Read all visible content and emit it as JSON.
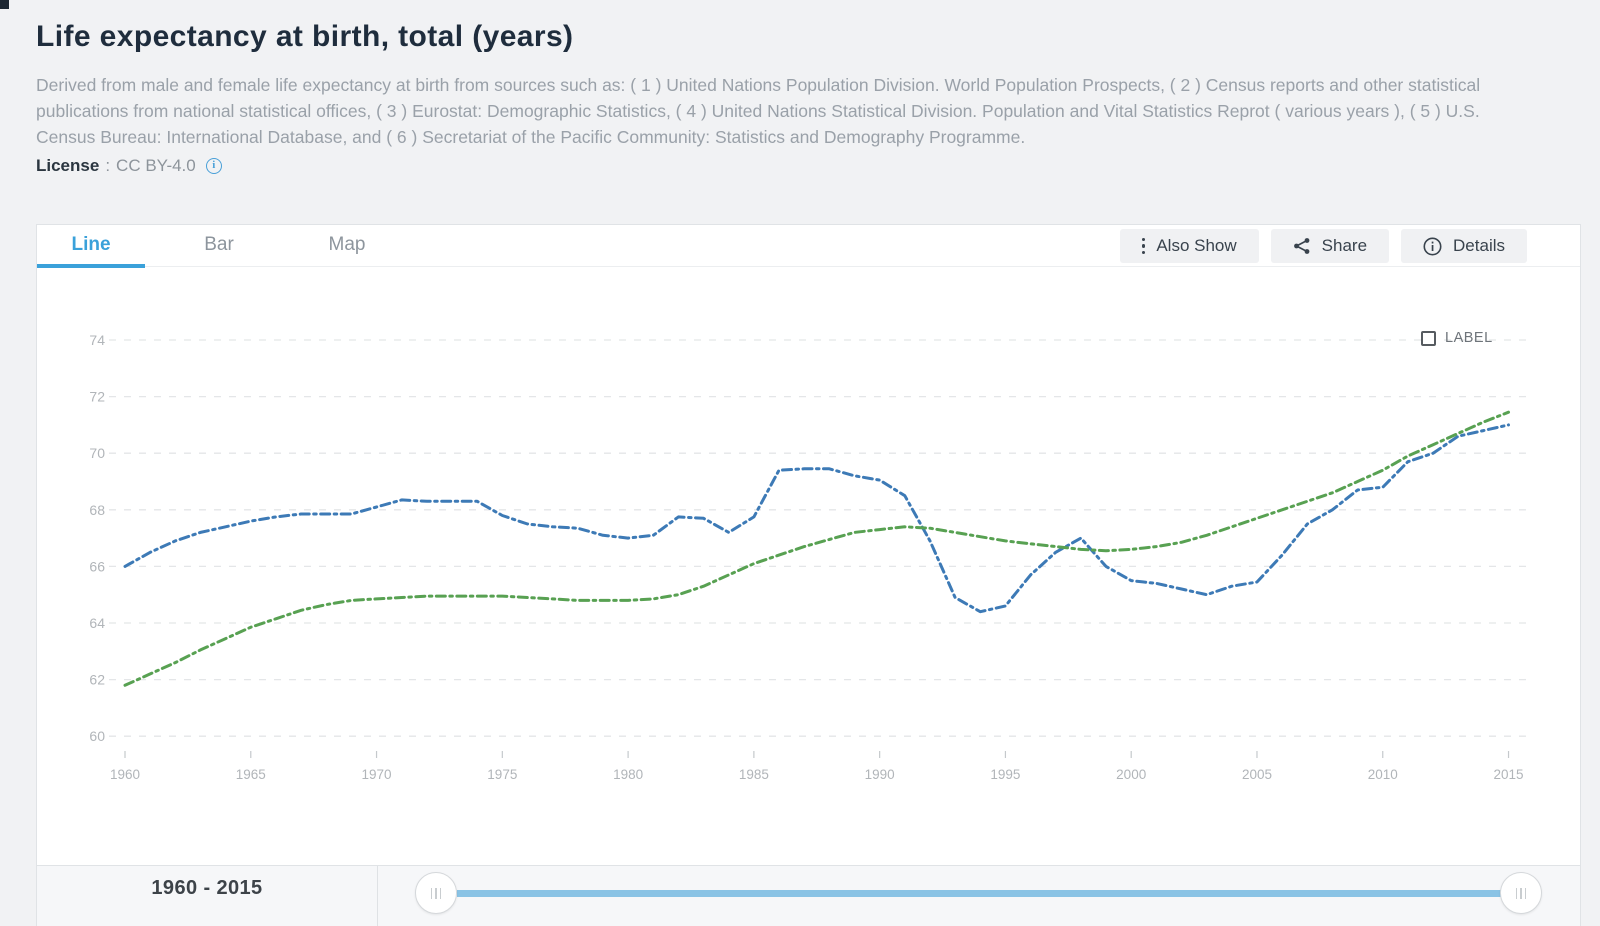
{
  "page": {
    "title": "Life expectancy at birth, total (years)",
    "description": "Derived from male and female life expectancy at birth from sources such as: ( 1 ) United Nations Population Division. World Population Prospects, ( 2 ) Census reports and other statistical publications from national statistical offices, ( 3 ) Eurostat: Demographic Statistics, ( 4 ) United Nations Statistical Division. Population and Vital Statistics Reprot ( various years ), ( 5 ) U.S. Census Bureau: International Database, and ( 6 ) Secretariat of the Pacific Community: Statistics and Demography Programme.",
    "license_label": "License",
    "license_separator": ":",
    "license_value": "CC BY-4.0"
  },
  "tabs": {
    "items": [
      {
        "label": "Line",
        "active": true
      },
      {
        "label": "Bar",
        "active": false
      },
      {
        "label": "Map",
        "active": false
      }
    ]
  },
  "toolbar": {
    "also_show_label": "Also Show",
    "share_label": "Share",
    "details_label": "Details"
  },
  "chart_controls": {
    "label_checkbox_text": "LABEL",
    "label_checkbox_checked": false
  },
  "chart_data": {
    "type": "line",
    "title": "",
    "xlabel": "",
    "ylabel": "",
    "grid": "horizontal-dashed",
    "legend": "none",
    "ylim": [
      59,
      75
    ],
    "y_ticks": [
      60,
      62,
      64,
      66,
      68,
      70,
      72,
      74
    ],
    "x_ticks": [
      1960,
      1965,
      1970,
      1975,
      1980,
      1985,
      1990,
      1995,
      2000,
      2005,
      2010,
      2015
    ],
    "years": [
      1960,
      1961,
      1962,
      1963,
      1964,
      1965,
      1966,
      1967,
      1968,
      1969,
      1970,
      1971,
      1972,
      1973,
      1974,
      1975,
      1976,
      1977,
      1978,
      1979,
      1980,
      1981,
      1982,
      1983,
      1984,
      1985,
      1986,
      1987,
      1988,
      1989,
      1990,
      1991,
      1992,
      1993,
      1994,
      1995,
      1996,
      1997,
      1998,
      1999,
      2000,
      2001,
      2002,
      2003,
      2004,
      2005,
      2006,
      2007,
      2008,
      2009,
      2010,
      2011,
      2012,
      2013,
      2014,
      2015
    ],
    "series": [
      {
        "name": "series-1-blue",
        "color": "#3d7ab6",
        "values": [
          66.0,
          66.5,
          66.9,
          67.2,
          67.4,
          67.6,
          67.75,
          67.85,
          67.85,
          67.85,
          68.1,
          68.35,
          68.3,
          68.3,
          68.3,
          67.8,
          67.5,
          67.4,
          67.35,
          67.1,
          67.0,
          67.1,
          67.75,
          67.7,
          67.2,
          67.75,
          69.4,
          69.45,
          69.45,
          69.2,
          69.05,
          68.5,
          66.9,
          64.9,
          64.4,
          64.6,
          65.7,
          66.5,
          67.0,
          66.0,
          65.5,
          65.4,
          65.2,
          65.0,
          65.3,
          65.45,
          66.4,
          67.5,
          68.0,
          68.7,
          68.8,
          69.7,
          70.0,
          70.6,
          70.8,
          71.0
        ]
      },
      {
        "name": "series-2-green",
        "color": "#58a152",
        "values": [
          61.8,
          62.2,
          62.6,
          63.05,
          63.45,
          63.85,
          64.15,
          64.45,
          64.65,
          64.8,
          64.85,
          64.9,
          64.95,
          64.95,
          64.95,
          64.95,
          64.9,
          64.85,
          64.8,
          64.8,
          64.8,
          64.85,
          65.0,
          65.3,
          65.7,
          66.1,
          66.4,
          66.7,
          66.95,
          67.2,
          67.3,
          67.4,
          67.35,
          67.2,
          67.05,
          66.9,
          66.8,
          66.7,
          66.6,
          66.55,
          66.6,
          66.7,
          66.85,
          67.1,
          67.4,
          67.7,
          68.0,
          68.3,
          68.6,
          69.0,
          69.4,
          69.9,
          70.3,
          70.7,
          71.1,
          71.45
        ]
      }
    ]
  },
  "range_slider": {
    "range_label": "1960 - 2015",
    "start_year": 1960,
    "end_year": 2015
  },
  "colors": {
    "accent_blue": "#3aa1da",
    "series_blue": "#3d7ab6",
    "series_green": "#58a152",
    "slider_track": "#8ac3e5",
    "gridline": "#e4e6e8",
    "axis_text": "#b1b5b9"
  }
}
